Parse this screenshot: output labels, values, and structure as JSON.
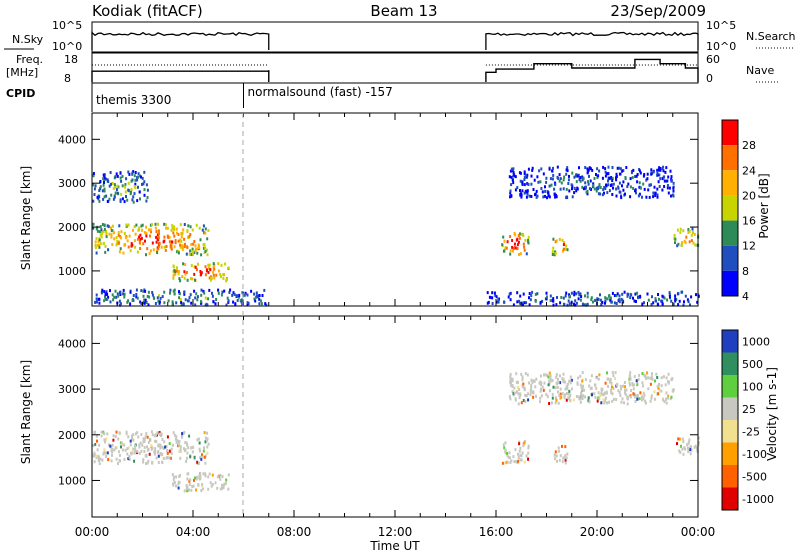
{
  "header": {
    "radar": "Kodiak (fitACF)",
    "beam": "Beam 13",
    "date": "23/Sep/2009"
  },
  "chart_data": [
    {
      "type": "line",
      "panel": "noise",
      "left_label": "N.Sky",
      "right_label": "N.Search",
      "left_ticks": [
        "10^5",
        "10^0"
      ],
      "right_ticks": [
        "10^5",
        "10^0"
      ],
      "segments": [
        {
          "x_start_hours": 0.0,
          "x_end_hours": 7.0
        },
        {
          "x_start_hours": 15.6,
          "x_end_hours": 24.0
        }
      ]
    },
    {
      "type": "line",
      "panel": "frequency",
      "left_label_lines": [
        "Freq.",
        "[MHz]"
      ],
      "right_label": "Nave",
      "left_ticks": [
        18,
        8
      ],
      "right_ticks": [
        60,
        0
      ],
      "freq_segments": [
        {
          "x": [
            0.0,
            6.7,
            7.0
          ],
          "y": [
            11.5,
            11.5,
            12.0
          ]
        },
        {
          "x": [
            15.6,
            16.0,
            17.5,
            19.0,
            21.5,
            22.5,
            23.5,
            24.0
          ],
          "y": [
            11.0,
            12.5,
            15.0,
            13.0,
            17.0,
            15.0,
            13.0,
            13.0
          ]
        }
      ]
    },
    {
      "type": "table",
      "panel": "cpid",
      "label": "CPID",
      "programs": [
        {
          "name": "themis 3300",
          "start_hours": 0.0
        },
        {
          "name": "normalsound (fast) -157",
          "start_hours": 6.0
        }
      ]
    },
    {
      "type": "heatmap",
      "panel": "power",
      "ylabel": "Slant Range [km]",
      "colorbar_label": "Power [dB]",
      "colorbar_ticks": [
        28,
        24,
        20,
        16,
        12,
        8,
        4
      ],
      "colorbar_colors": [
        "#ff0000",
        "#ff7000",
        "#ffb000",
        "#c8d400",
        "#2e8b57",
        "#1f4fbf",
        "#0000ff"
      ],
      "y_ticks": [
        1000,
        2000,
        3000,
        4000
      ],
      "ylim": [
        200,
        4600
      ],
      "xlim_hours": [
        0,
        24
      ],
      "echo_regions": [
        {
          "t0": 0.0,
          "t1": 4.6,
          "r0": 1400,
          "r1": 2100,
          "level": 0.85
        },
        {
          "t0": 3.1,
          "t1": 5.4,
          "r0": 800,
          "r1": 1200,
          "level": 0.9
        },
        {
          "t0": 0.0,
          "t1": 2.2,
          "r0": 2600,
          "r1": 3300,
          "level": 0.35
        },
        {
          "t0": 0.0,
          "t1": 7.0,
          "r0": 250,
          "r1": 600,
          "level": 0.3
        },
        {
          "t0": 15.6,
          "t1": 24.0,
          "r0": 250,
          "r1": 550,
          "level": 0.25
        },
        {
          "t0": 16.2,
          "t1": 17.3,
          "r0": 1400,
          "r1": 1900,
          "level": 0.95
        },
        {
          "t0": 18.2,
          "t1": 18.8,
          "r0": 1400,
          "r1": 1800,
          "level": 0.95
        },
        {
          "t0": 23.0,
          "t1": 24.0,
          "r0": 1600,
          "r1": 2000,
          "level": 0.8
        },
        {
          "t0": 16.5,
          "t1": 23.0,
          "r0": 2700,
          "r1": 3400,
          "level": 0.2
        }
      ]
    },
    {
      "type": "heatmap",
      "panel": "velocity",
      "ylabel": "Slant Range [km]",
      "colorbar_label": "Velocity [m s-1]",
      "colorbar_ticks": [
        1000,
        500,
        100,
        25,
        -25,
        -100,
        -500,
        -1000
      ],
      "colorbar_colors": [
        "#1f3fbf",
        "#2f8f5f",
        "#5fcf3f",
        "#c8c8c0",
        "#f0e090",
        "#ffa000",
        "#ff6000",
        "#e00000"
      ],
      "y_ticks": [
        1000,
        2000,
        3000,
        4000
      ],
      "ylim": [
        200,
        4600
      ],
      "xlim_hours": [
        0,
        24
      ],
      "xlabel": "Time UT",
      "x_tick_labels": [
        "00:00",
        "04:00",
        "08:00",
        "12:00",
        "16:00",
        "20:00",
        "00:00"
      ],
      "echo_regions": [
        {
          "t0": 0.0,
          "t1": 4.6,
          "r0": 1400,
          "r1": 2100,
          "level": 0.5
        },
        {
          "t0": 3.1,
          "t1": 5.4,
          "r0": 800,
          "r1": 1200,
          "level": 0.5
        },
        {
          "t0": 16.2,
          "t1": 17.3,
          "r0": 1400,
          "r1": 1900,
          "level": 0.5
        },
        {
          "t0": 18.2,
          "t1": 18.8,
          "r0": 1400,
          "r1": 1800,
          "level": 0.5
        },
        {
          "t0": 23.0,
          "t1": 24.0,
          "r0": 1600,
          "r1": 2000,
          "level": 0.5
        },
        {
          "t0": 16.5,
          "t1": 23.0,
          "r0": 2700,
          "r1": 3400,
          "level": 0.5
        }
      ]
    }
  ]
}
